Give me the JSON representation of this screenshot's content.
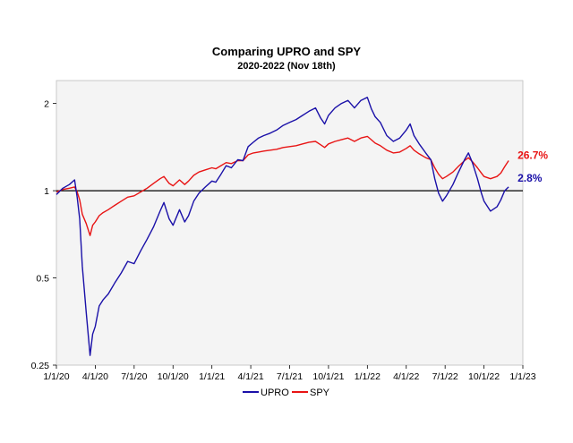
{
  "chart_data": {
    "type": "line",
    "title": "Comparing UPRO and SPY",
    "subtitle": "2020-2022 (Nov 18th)",
    "y_scale": "log",
    "ylim": [
      0.25,
      2.4
    ],
    "xlim": [
      0,
      36
    ],
    "y_ticks": [
      {
        "value": 0.25,
        "label": "0.25"
      },
      {
        "value": 0.5,
        "label": "0.5"
      },
      {
        "value": 1,
        "label": "1"
      },
      {
        "value": 2,
        "label": "2"
      }
    ],
    "x_ticks": [
      {
        "month": 0,
        "label": "1/1/20"
      },
      {
        "month": 3,
        "label": "4/1/20"
      },
      {
        "month": 6,
        "label": "7/1/20"
      },
      {
        "month": 9,
        "label": "10/1/20"
      },
      {
        "month": 12,
        "label": "1/1/21"
      },
      {
        "month": 15,
        "label": "4/1/21"
      },
      {
        "month": 18,
        "label": "7/1/21"
      },
      {
        "month": 21,
        "label": "10/1/21"
      },
      {
        "month": 24,
        "label": "1/1/22"
      },
      {
        "month": 27,
        "label": "4/1/22"
      },
      {
        "month": 30,
        "label": "7/1/22"
      },
      {
        "month": 33,
        "label": "10/1/22"
      },
      {
        "month": 36,
        "label": "1/1/23"
      }
    ],
    "reference_line": 1,
    "series": [
      {
        "name": "UPRO",
        "color": "#1a10a8",
        "end_label": "2.8%",
        "points": [
          [
            0,
            0.97
          ],
          [
            0.5,
            1.02
          ],
          [
            1.0,
            1.05
          ],
          [
            1.4,
            1.09
          ],
          [
            1.6,
            0.95
          ],
          [
            1.8,
            0.8
          ],
          [
            2.0,
            0.55
          ],
          [
            2.3,
            0.38
          ],
          [
            2.6,
            0.27
          ],
          [
            2.8,
            0.32
          ],
          [
            3.0,
            0.34
          ],
          [
            3.3,
            0.4
          ],
          [
            3.6,
            0.42
          ],
          [
            4.0,
            0.44
          ],
          [
            4.5,
            0.48
          ],
          [
            5.0,
            0.52
          ],
          [
            5.5,
            0.57
          ],
          [
            6.0,
            0.56
          ],
          [
            6.5,
            0.62
          ],
          [
            7.0,
            0.68
          ],
          [
            7.5,
            0.75
          ],
          [
            8.0,
            0.85
          ],
          [
            8.3,
            0.91
          ],
          [
            8.7,
            0.8
          ],
          [
            9.0,
            0.76
          ],
          [
            9.5,
            0.86
          ],
          [
            9.9,
            0.78
          ],
          [
            10.2,
            0.82
          ],
          [
            10.6,
            0.92
          ],
          [
            11.0,
            0.98
          ],
          [
            11.5,
            1.03
          ],
          [
            12.0,
            1.08
          ],
          [
            12.3,
            1.07
          ],
          [
            12.7,
            1.14
          ],
          [
            13.1,
            1.22
          ],
          [
            13.5,
            1.2
          ],
          [
            14.0,
            1.28
          ],
          [
            14.4,
            1.27
          ],
          [
            14.8,
            1.42
          ],
          [
            15.2,
            1.47
          ],
          [
            15.6,
            1.52
          ],
          [
            16.0,
            1.55
          ],
          [
            16.5,
            1.58
          ],
          [
            17.0,
            1.62
          ],
          [
            17.5,
            1.68
          ],
          [
            18.0,
            1.72
          ],
          [
            18.5,
            1.76
          ],
          [
            19.0,
            1.82
          ],
          [
            19.5,
            1.88
          ],
          [
            20.0,
            1.93
          ],
          [
            20.4,
            1.78
          ],
          [
            20.7,
            1.7
          ],
          [
            21.0,
            1.82
          ],
          [
            21.5,
            1.93
          ],
          [
            22.0,
            2.0
          ],
          [
            22.5,
            2.05
          ],
          [
            23.0,
            1.93
          ],
          [
            23.5,
            2.05
          ],
          [
            24.0,
            2.1
          ],
          [
            24.3,
            1.92
          ],
          [
            24.6,
            1.8
          ],
          [
            25.0,
            1.72
          ],
          [
            25.5,
            1.55
          ],
          [
            26.0,
            1.48
          ],
          [
            26.5,
            1.52
          ],
          [
            27.0,
            1.62
          ],
          [
            27.3,
            1.7
          ],
          [
            27.6,
            1.55
          ],
          [
            28.0,
            1.45
          ],
          [
            28.5,
            1.35
          ],
          [
            28.9,
            1.28
          ],
          [
            29.2,
            1.1
          ],
          [
            29.5,
            0.98
          ],
          [
            29.8,
            0.92
          ],
          [
            30.1,
            0.96
          ],
          [
            30.6,
            1.05
          ],
          [
            31.0,
            1.15
          ],
          [
            31.5,
            1.28
          ],
          [
            31.8,
            1.35
          ],
          [
            32.1,
            1.25
          ],
          [
            32.5,
            1.1
          ],
          [
            32.8,
            0.98
          ],
          [
            33.0,
            0.92
          ],
          [
            33.5,
            0.85
          ],
          [
            34.0,
            0.88
          ],
          [
            34.3,
            0.93
          ],
          [
            34.6,
            1.0
          ],
          [
            34.9,
            1.03
          ]
        ]
      },
      {
        "name": "SPY",
        "color": "#e81414",
        "end_label": "26.7%",
        "points": [
          [
            0,
            0.99
          ],
          [
            0.5,
            1.01
          ],
          [
            1.0,
            1.02
          ],
          [
            1.4,
            1.03
          ],
          [
            1.6,
            0.99
          ],
          [
            1.8,
            0.93
          ],
          [
            2.0,
            0.83
          ],
          [
            2.3,
            0.77
          ],
          [
            2.6,
            0.7
          ],
          [
            2.8,
            0.76
          ],
          [
            3.0,
            0.78
          ],
          [
            3.3,
            0.82
          ],
          [
            3.6,
            0.84
          ],
          [
            4.0,
            0.86
          ],
          [
            4.5,
            0.89
          ],
          [
            5.0,
            0.92
          ],
          [
            5.5,
            0.95
          ],
          [
            6.0,
            0.96
          ],
          [
            6.5,
            0.99
          ],
          [
            7.0,
            1.02
          ],
          [
            7.5,
            1.06
          ],
          [
            8.0,
            1.1
          ],
          [
            8.3,
            1.12
          ],
          [
            8.7,
            1.06
          ],
          [
            9.0,
            1.04
          ],
          [
            9.5,
            1.09
          ],
          [
            9.9,
            1.05
          ],
          [
            10.2,
            1.08
          ],
          [
            10.6,
            1.13
          ],
          [
            11.0,
            1.16
          ],
          [
            11.5,
            1.18
          ],
          [
            12.0,
            1.2
          ],
          [
            12.3,
            1.19
          ],
          [
            12.7,
            1.22
          ],
          [
            13.1,
            1.25
          ],
          [
            13.5,
            1.24
          ],
          [
            14.0,
            1.27
          ],
          [
            14.4,
            1.27
          ],
          [
            14.8,
            1.33
          ],
          [
            15.2,
            1.35
          ],
          [
            15.6,
            1.36
          ],
          [
            16.0,
            1.37
          ],
          [
            16.5,
            1.38
          ],
          [
            17.0,
            1.39
          ],
          [
            17.5,
            1.41
          ],
          [
            18.0,
            1.42
          ],
          [
            18.5,
            1.43
          ],
          [
            19.0,
            1.45
          ],
          [
            19.5,
            1.47
          ],
          [
            20.0,
            1.48
          ],
          [
            20.4,
            1.44
          ],
          [
            20.7,
            1.41
          ],
          [
            21.0,
            1.45
          ],
          [
            21.5,
            1.48
          ],
          [
            22.0,
            1.5
          ],
          [
            22.5,
            1.52
          ],
          [
            23.0,
            1.48
          ],
          [
            23.5,
            1.52
          ],
          [
            24.0,
            1.54
          ],
          [
            24.3,
            1.5
          ],
          [
            24.6,
            1.46
          ],
          [
            25.0,
            1.43
          ],
          [
            25.5,
            1.38
          ],
          [
            26.0,
            1.35
          ],
          [
            26.5,
            1.36
          ],
          [
            27.0,
            1.4
          ],
          [
            27.3,
            1.43
          ],
          [
            27.6,
            1.38
          ],
          [
            28.0,
            1.34
          ],
          [
            28.5,
            1.3
          ],
          [
            28.9,
            1.28
          ],
          [
            29.2,
            1.2
          ],
          [
            29.5,
            1.14
          ],
          [
            29.8,
            1.1
          ],
          [
            30.1,
            1.12
          ],
          [
            30.6,
            1.16
          ],
          [
            31.0,
            1.21
          ],
          [
            31.5,
            1.27
          ],
          [
            31.8,
            1.3
          ],
          [
            32.1,
            1.26
          ],
          [
            32.5,
            1.2
          ],
          [
            32.8,
            1.15
          ],
          [
            33.0,
            1.12
          ],
          [
            33.5,
            1.1
          ],
          [
            34.0,
            1.12
          ],
          [
            34.3,
            1.15
          ],
          [
            34.6,
            1.21
          ],
          [
            34.9,
            1.27
          ]
        ]
      }
    ],
    "legend_position": "bottom-center"
  }
}
